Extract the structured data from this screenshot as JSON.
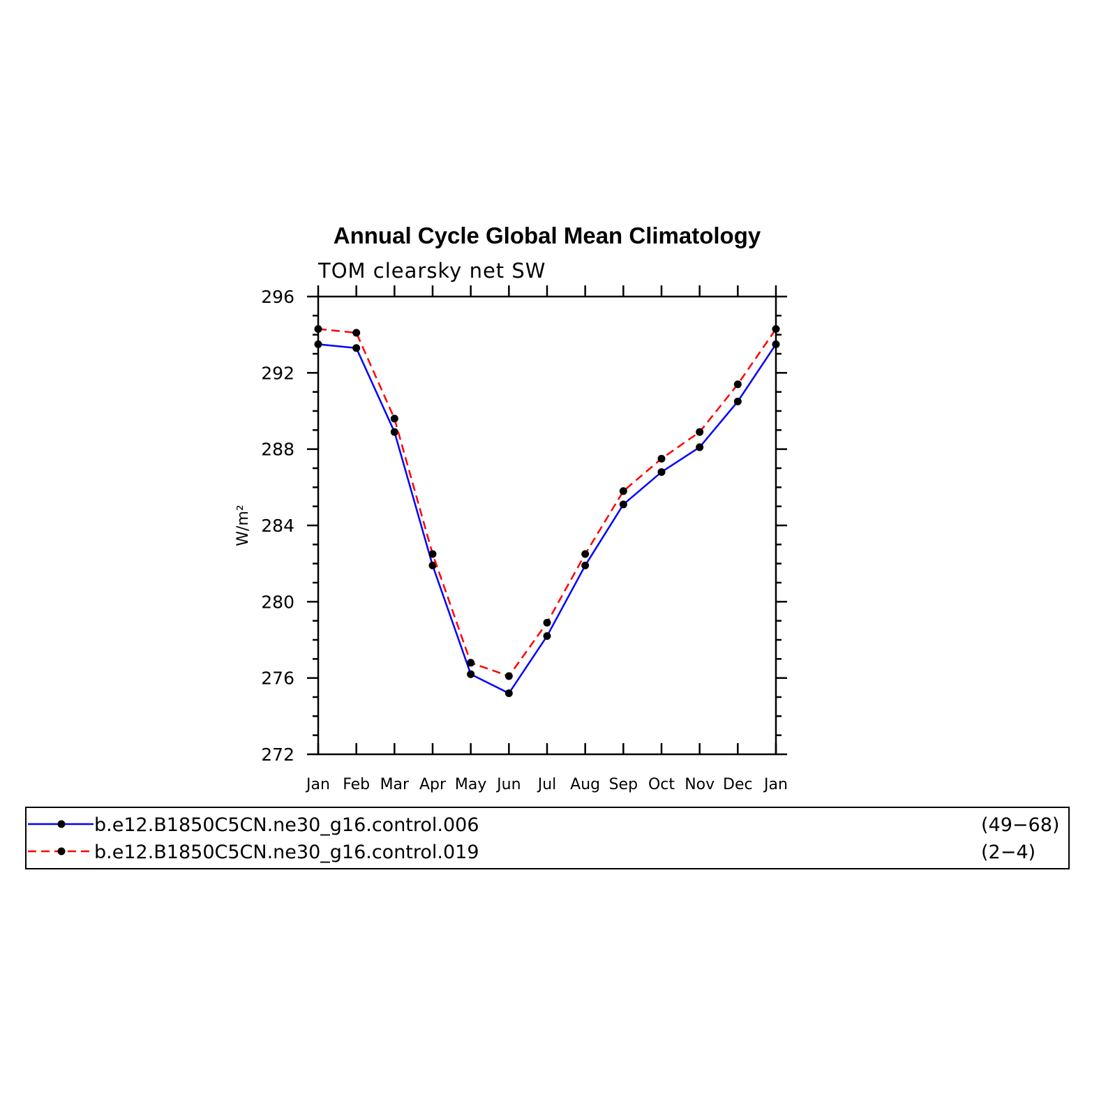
{
  "chart_data": {
    "type": "line",
    "title": "Annual Cycle Global Mean Climatology",
    "subtitle": "TOM clearsky net SW",
    "ylabel": "W/m²",
    "xlabel": "",
    "categories": [
      "Jan",
      "Feb",
      "Mar",
      "Apr",
      "May",
      "Jun",
      "Jul",
      "Aug",
      "Sep",
      "Oct",
      "Nov",
      "Dec",
      "Jan"
    ],
    "ylim": [
      272,
      296
    ],
    "yticks": [
      272,
      276,
      280,
      284,
      288,
      292,
      296
    ],
    "grid": false,
    "legend_placement": "bottom",
    "series": [
      {
        "name": "b.e12.B1850C5CN.ne30_g16.control.006",
        "years": "(49−68)",
        "color": "#0000ff",
        "line_style": "solid",
        "marker": "filled-circle",
        "values": [
          293.5,
          293.3,
          288.9,
          281.9,
          276.2,
          275.2,
          278.2,
          281.9,
          285.1,
          286.8,
          288.1,
          290.5,
          293.5
        ]
      },
      {
        "name": "b.e12.B1850C5CN.ne30_g16.control.019",
        "years": "(2−4)",
        "color": "#ff0000",
        "line_style": "dashed",
        "marker": "filled-circle",
        "values": [
          294.3,
          294.1,
          289.6,
          282.5,
          276.8,
          276.1,
          278.9,
          282.5,
          285.8,
          287.5,
          288.9,
          291.4,
          294.3
        ]
      }
    ]
  }
}
